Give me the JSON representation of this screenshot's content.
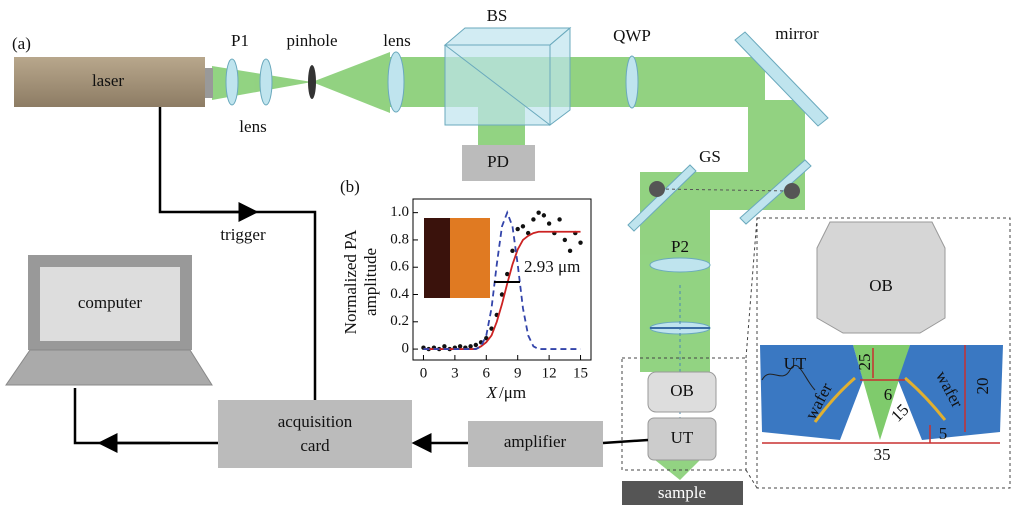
{
  "panel_labels": [
    "(a)",
    "(b)"
  ],
  "setup": {
    "laser": "laser",
    "p1": "P1",
    "pinhole": "pinhole",
    "lens_top": "lens",
    "lens_bottom": "lens",
    "bs": "BS",
    "qwp": "QWP",
    "mirror": "mirror",
    "pd": "PD",
    "gs": "GS",
    "p2": "P2",
    "ob": "OB",
    "ut": "UT",
    "sample": "sample",
    "trigger": "trigger",
    "computer": "computer",
    "acquisition_card": [
      "acquisition",
      "card"
    ],
    "amplifier": "amplifier"
  },
  "detail": {
    "ob": "OB",
    "ut": "UT",
    "wafer_left": "wafer",
    "wafer_right": "wafer",
    "dimensions": [
      25,
      6,
      15,
      20,
      5,
      35
    ]
  },
  "inset_chart": {
    "type": "scatter",
    "ylabel": [
      "Normalized PA",
      "amplitude"
    ],
    "xlabel": [
      "X",
      "/μm"
    ],
    "annotation": "2.93 μm",
    "xlim": [
      -1,
      16
    ],
    "ylim": [
      -0.08,
      1.1
    ],
    "xticks": [
      0,
      3,
      6,
      9,
      12,
      15
    ],
    "yticks": [
      0,
      0.2,
      0.4,
      0.6,
      0.8,
      {
        "value": 1,
        "label": "1.0"
      }
    ],
    "series": [
      {
        "style": "points",
        "color": "#111111",
        "x": [
          0,
          0.5,
          1,
          1.5,
          2,
          2.5,
          3,
          3.5,
          4,
          4.5,
          5,
          5.5,
          6,
          6.5,
          7,
          7.5,
          8,
          8.5,
          9,
          9.5,
          10,
          10.5,
          11,
          11.5,
          12,
          12.5,
          13,
          13.5,
          14,
          14.5,
          15
        ],
        "values": [
          0.01,
          0,
          0.01,
          0,
          0.02,
          0,
          0.01,
          0.02,
          0.01,
          0.02,
          0.03,
          0.05,
          0.08,
          0.15,
          0.25,
          0.4,
          0.55,
          0.72,
          0.88,
          0.9,
          0.85,
          0.95,
          1.0,
          0.98,
          0.92,
          0.85,
          0.95,
          0.8,
          0.72,
          0.85,
          0.78
        ]
      },
      {
        "style": "line",
        "color": "#cc2222",
        "x": [
          0,
          5,
          5.5,
          6,
          6.5,
          7,
          7.5,
          8,
          8.5,
          9,
          9.5,
          10,
          10.5,
          11,
          15
        ],
        "values": [
          0,
          0,
          0.02,
          0.05,
          0.1,
          0.2,
          0.33,
          0.48,
          0.62,
          0.73,
          0.8,
          0.83,
          0.85,
          0.86,
          0.86
        ]
      },
      {
        "style": "dashed",
        "color": "#3344aa",
        "x": [
          0,
          5,
          5.5,
          6,
          6.5,
          7,
          7.5,
          8,
          8.5,
          9,
          9.5,
          10,
          10.5,
          11,
          15
        ],
        "values": [
          0,
          0,
          0.02,
          0.1,
          0.3,
          0.62,
          0.9,
          1.0,
          0.9,
          0.62,
          0.3,
          0.1,
          0.02,
          0,
          0
        ]
      }
    ]
  }
}
